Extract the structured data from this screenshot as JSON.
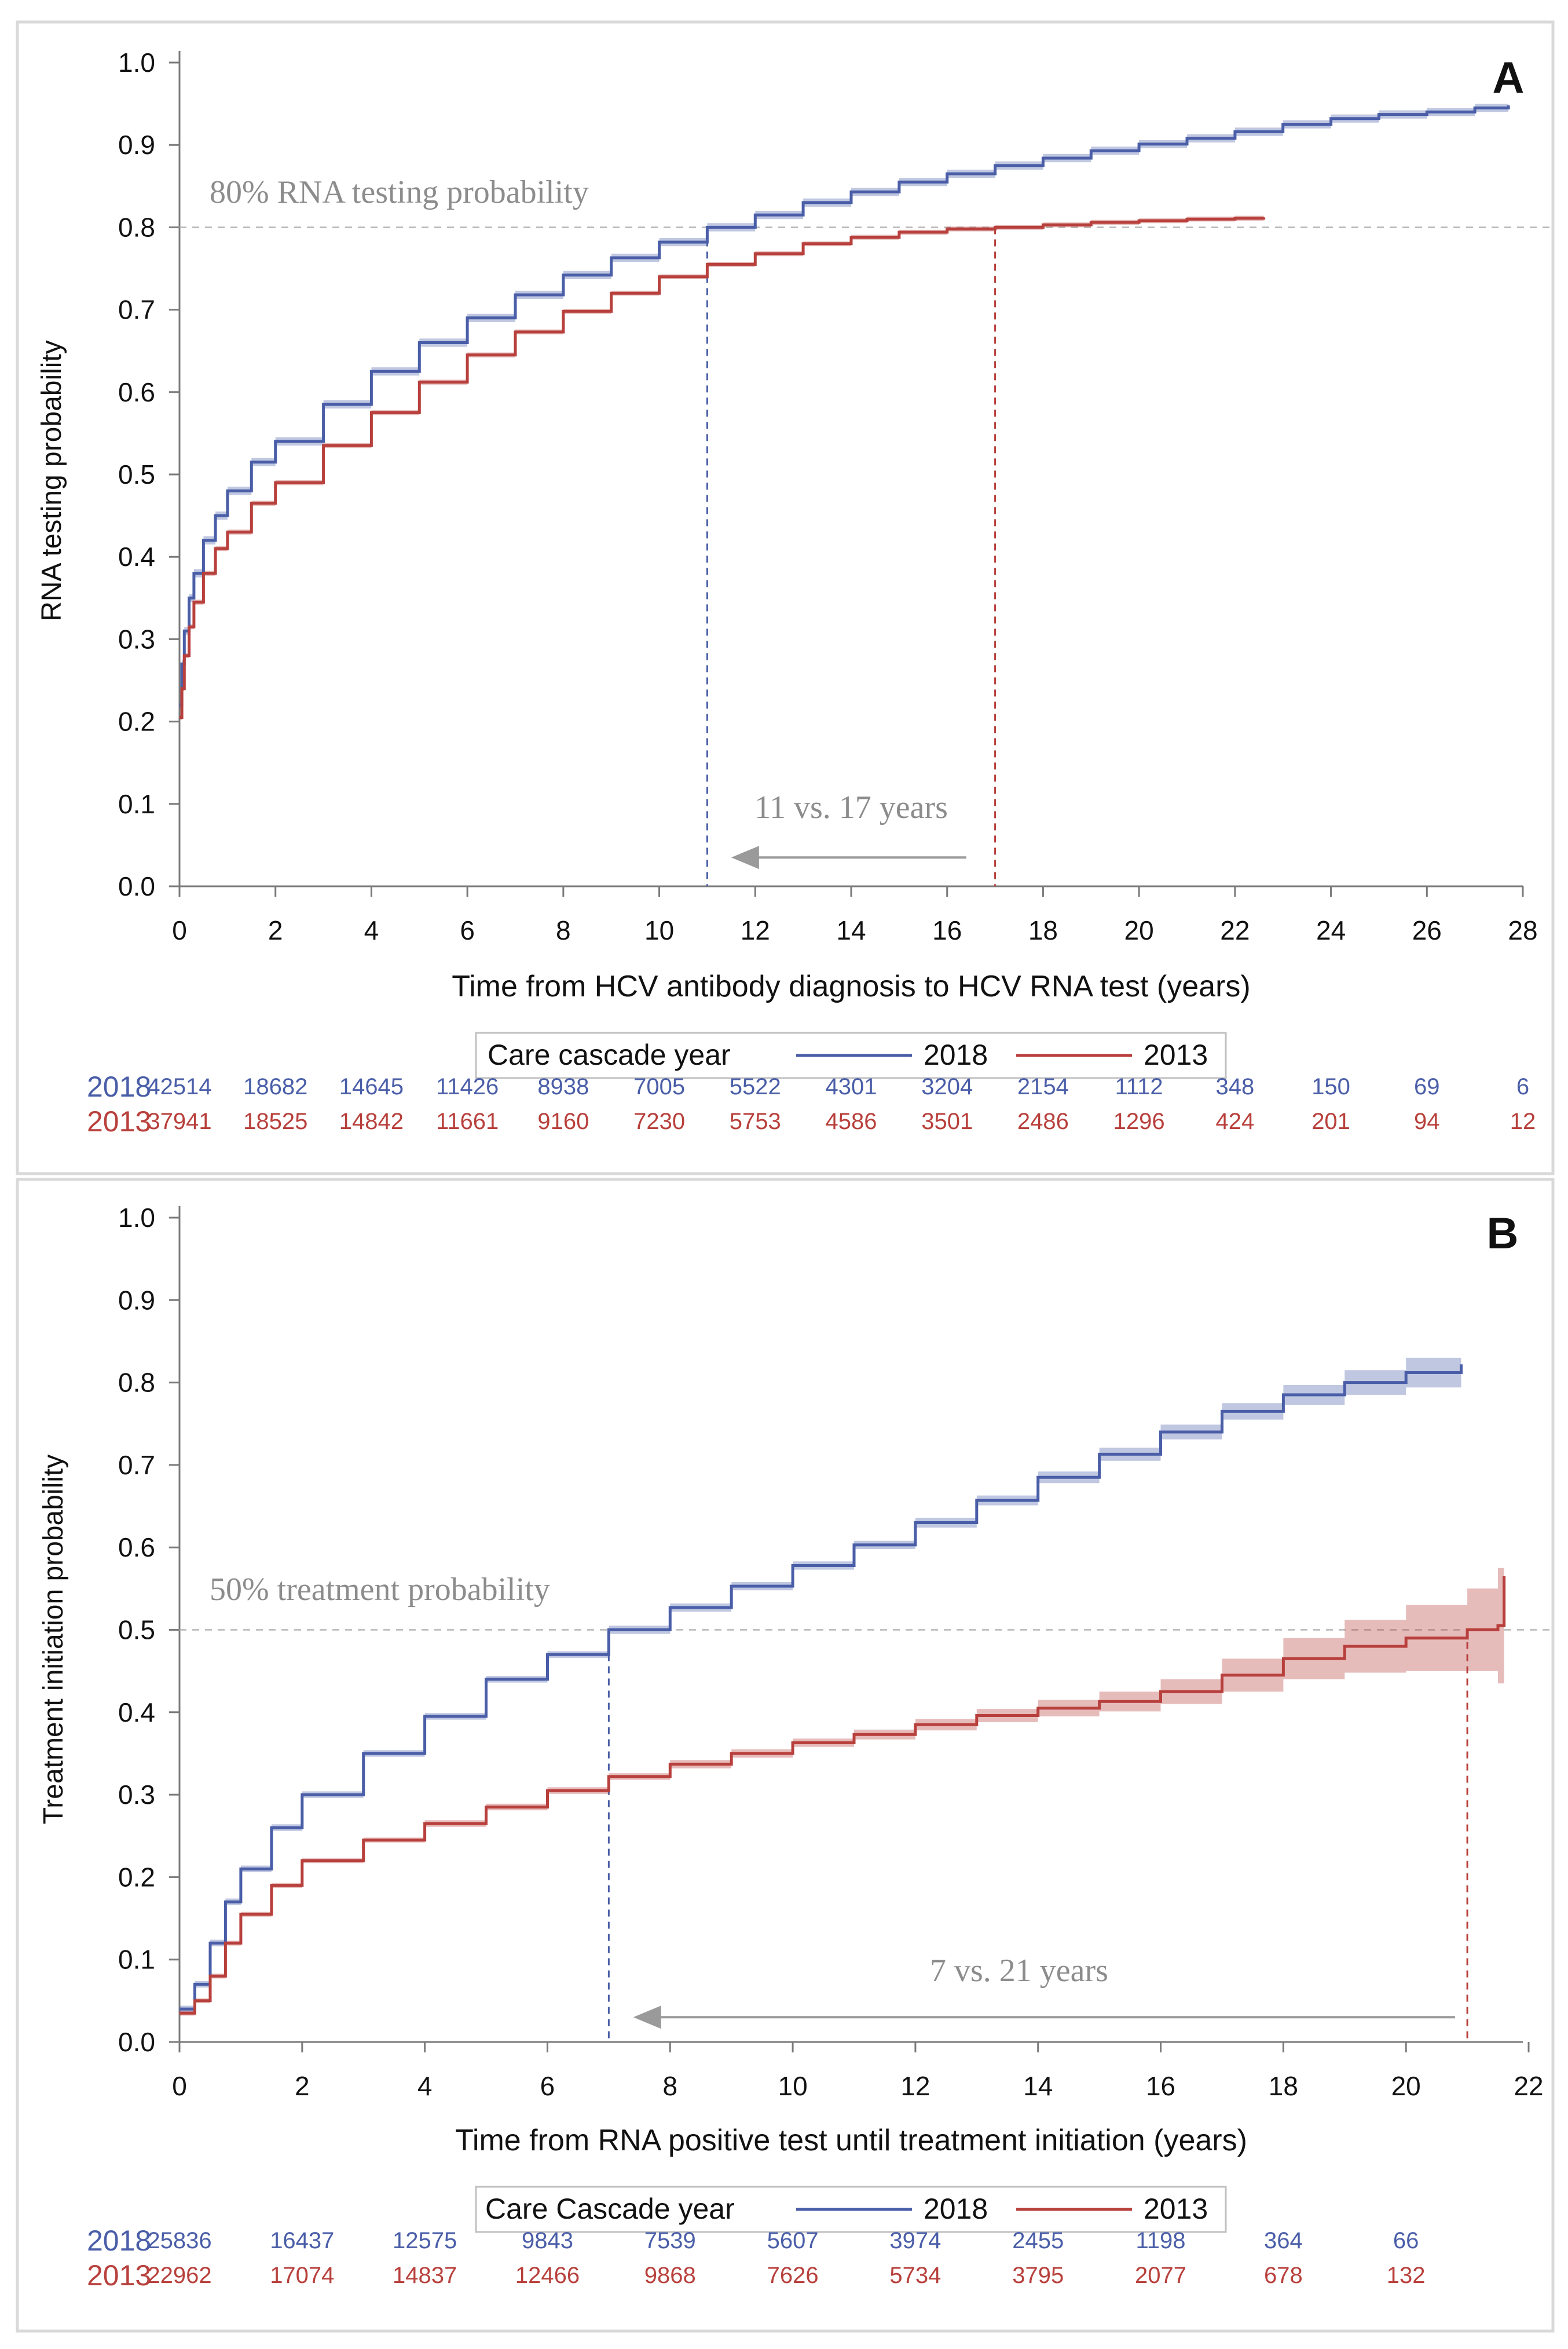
{
  "chart_data": [
    {
      "type": "line",
      "panel_label": "A",
      "xlabel": "Time from HCV antibody diagnosis to HCV RNA test (years)",
      "ylabel": "RNA testing probability",
      "xlim": [
        0,
        28
      ],
      "ylim": [
        0,
        1.0
      ],
      "xticks": [
        0,
        2,
        4,
        6,
        8,
        10,
        12,
        14,
        16,
        18,
        20,
        22,
        24,
        26,
        28
      ],
      "xtick_labels": [
        "0",
        "2",
        "4",
        "6",
        "8",
        "10",
        "12",
        "14",
        "16",
        "18",
        "20",
        "22",
        "24",
        "26",
        "28"
      ],
      "yticks": [
        0,
        0.1,
        0.2,
        0.3,
        0.4,
        0.5,
        0.6,
        0.7,
        0.8,
        0.9,
        1.0
      ],
      "ytick_labels": [
        "0.0",
        "0.1",
        "0.2",
        "0.3",
        "0.4",
        "0.5",
        "0.6",
        "0.7",
        "0.8",
        "0.9",
        "1.0"
      ],
      "threshold": {
        "y": 0.8,
        "label": "80% RNA testing probability"
      },
      "drop_lines": [
        {
          "series": "2018",
          "x": 11
        },
        {
          "series": "2013",
          "x": 17
        }
      ],
      "arrow": {
        "from_x": 16.4,
        "to_x": 11.5,
        "y": 0.035,
        "label": "11 vs. 17 years"
      },
      "legend": {
        "title": "Care cascade year",
        "placement": "below",
        "entries": [
          "2018",
          "2013"
        ]
      },
      "series": [
        {
          "name": "2018",
          "color": "#4a5ea8",
          "band": 0.005,
          "points": [
            [
              0,
              0.22
            ],
            [
              0.05,
              0.27
            ],
            [
              0.1,
              0.31
            ],
            [
              0.2,
              0.35
            ],
            [
              0.3,
              0.38
            ],
            [
              0.5,
              0.42
            ],
            [
              0.75,
              0.45
            ],
            [
              1,
              0.48
            ],
            [
              1.5,
              0.515
            ],
            [
              2,
              0.54
            ],
            [
              3,
              0.585
            ],
            [
              4,
              0.625
            ],
            [
              5,
              0.66
            ],
            [
              6,
              0.69
            ],
            [
              7,
              0.718
            ],
            [
              8,
              0.742
            ],
            [
              9,
              0.763
            ],
            [
              10,
              0.782
            ],
            [
              11,
              0.8
            ],
            [
              12,
              0.815
            ],
            [
              13,
              0.83
            ],
            [
              14,
              0.843
            ],
            [
              15,
              0.855
            ],
            [
              16,
              0.865
            ],
            [
              17,
              0.875
            ],
            [
              18,
              0.884
            ],
            [
              19,
              0.893
            ],
            [
              20,
              0.901
            ],
            [
              21,
              0.908
            ],
            [
              22,
              0.916
            ],
            [
              23,
              0.925
            ],
            [
              24,
              0.932
            ],
            [
              25,
              0.937
            ],
            [
              26,
              0.94
            ],
            [
              27,
              0.945
            ],
            [
              27.7,
              0.948
            ]
          ]
        },
        {
          "name": "2013",
          "color": "#b8403c",
          "band": 0.003,
          "points": [
            [
              0,
              0.205
            ],
            [
              0.05,
              0.24
            ],
            [
              0.1,
              0.28
            ],
            [
              0.2,
              0.315
            ],
            [
              0.3,
              0.345
            ],
            [
              0.5,
              0.38
            ],
            [
              0.75,
              0.41
            ],
            [
              1,
              0.43
            ],
            [
              1.5,
              0.465
            ],
            [
              2,
              0.49
            ],
            [
              3,
              0.535
            ],
            [
              4,
              0.575
            ],
            [
              5,
              0.612
            ],
            [
              6,
              0.645
            ],
            [
              7,
              0.673
            ],
            [
              8,
              0.698
            ],
            [
              9,
              0.72
            ],
            [
              10,
              0.74
            ],
            [
              11,
              0.755
            ],
            [
              12,
              0.768
            ],
            [
              13,
              0.78
            ],
            [
              14,
              0.788
            ],
            [
              15,
              0.794
            ],
            [
              16,
              0.798
            ],
            [
              17,
              0.8
            ],
            [
              18,
              0.803
            ],
            [
              19,
              0.806
            ],
            [
              20,
              0.808
            ],
            [
              21,
              0.81
            ],
            [
              22,
              0.811
            ],
            [
              22.6,
              0.812
            ]
          ]
        }
      ],
      "at_risk": {
        "x": [
          0,
          2,
          4,
          6,
          8,
          10,
          12,
          14,
          16,
          18,
          20,
          22,
          24,
          26,
          28
        ],
        "rows": [
          {
            "label": "2018",
            "color": "#4a5ea8",
            "values": [
              "42514",
              "18682",
              "14645",
              "11426",
              "8938",
              "7005",
              "5522",
              "4301",
              "3204",
              "2154",
              "1112",
              "348",
              "150",
              "69",
              "6"
            ]
          },
          {
            "label": "2013",
            "color": "#b8403c",
            "values": [
              "37941",
              "18525",
              "14842",
              "11661",
              "9160",
              "7230",
              "5753",
              "4586",
              "3501",
              "2486",
              "1296",
              "424",
              "201",
              "94",
              "12"
            ]
          }
        ]
      }
    },
    {
      "type": "line",
      "panel_label": "B",
      "xlabel": "Time from RNA positive test until treatment initiation (years)",
      "ylabel": "Treatment initiation probability",
      "xlim": [
        0,
        22
      ],
      "ylim": [
        0,
        1.0
      ],
      "xticks": [
        0,
        2,
        4,
        6,
        8,
        10,
        12,
        14,
        16,
        18,
        20,
        22
      ],
      "xtick_labels": [
        "0",
        "2",
        "4",
        "6",
        "8",
        "10",
        "12",
        "14",
        "16",
        "18",
        "20",
        "22"
      ],
      "yticks": [
        0,
        0.1,
        0.2,
        0.3,
        0.4,
        0.5,
        0.6,
        0.7,
        0.8,
        0.9,
        1.0
      ],
      "ytick_labels": [
        "0.0",
        "0.1",
        "0.2",
        "0.3",
        "0.4",
        "0.5",
        "0.6",
        "0.7",
        "0.8",
        "0.9",
        "1.0"
      ],
      "threshold": {
        "y": 0.5,
        "label": "50% treatment probability"
      },
      "drop_lines": [
        {
          "series": "2018",
          "x": 7
        },
        {
          "series": "2013",
          "x": 21
        }
      ],
      "arrow": {
        "from_x": 20.8,
        "to_x": 7.4,
        "y": 0.03,
        "label": "7 vs. 21 years"
      },
      "legend": {
        "title": "Care Cascade year",
        "placement": "below",
        "entries": [
          "2018",
          "2013"
        ]
      },
      "series": [
        {
          "name": "2018",
          "color": "#4a5ea8",
          "points": [
            [
              0,
              0.04
            ],
            [
              0.25,
              0.07
            ],
            [
              0.5,
              0.12
            ],
            [
              0.75,
              0.17
            ],
            [
              1,
              0.21
            ],
            [
              1.5,
              0.26
            ],
            [
              2,
              0.3
            ],
            [
              3,
              0.35
            ],
            [
              4,
              0.395
            ],
            [
              5,
              0.44
            ],
            [
              6,
              0.47
            ],
            [
              7,
              0.5
            ],
            [
              8,
              0.527
            ],
            [
              9,
              0.553
            ],
            [
              10,
              0.578
            ],
            [
              11,
              0.603
            ],
            [
              12,
              0.63
            ],
            [
              13,
              0.657
            ],
            [
              14,
              0.685
            ],
            [
              15,
              0.713
            ],
            [
              16,
              0.74
            ],
            [
              17,
              0.765
            ],
            [
              18,
              0.785
            ],
            [
              19,
              0.8
            ],
            [
              20,
              0.812
            ],
            [
              20.9,
              0.822
            ]
          ],
          "band": [
            0.004,
            0.004,
            0.004,
            0.004,
            0.004,
            0.004,
            0.004,
            0.004,
            0.004,
            0.004,
            0.004,
            0.005,
            0.005,
            0.005,
            0.005,
            0.005,
            0.006,
            0.006,
            0.007,
            0.008,
            0.009,
            0.01,
            0.012,
            0.015,
            0.018,
            0.03
          ]
        },
        {
          "name": "2013",
          "color": "#b8403c",
          "points": [
            [
              0,
              0.035
            ],
            [
              0.25,
              0.05
            ],
            [
              0.5,
              0.08
            ],
            [
              0.75,
              0.12
            ],
            [
              1,
              0.155
            ],
            [
              1.5,
              0.19
            ],
            [
              2,
              0.22
            ],
            [
              3,
              0.245
            ],
            [
              4,
              0.265
            ],
            [
              5,
              0.285
            ],
            [
              6,
              0.305
            ],
            [
              7,
              0.322
            ],
            [
              8,
              0.337
            ],
            [
              9,
              0.35
            ],
            [
              10,
              0.363
            ],
            [
              11,
              0.373
            ],
            [
              12,
              0.385
            ],
            [
              13,
              0.396
            ],
            [
              14,
              0.405
            ],
            [
              15,
              0.413
            ],
            [
              16,
              0.425
            ],
            [
              17,
              0.445
            ],
            [
              18,
              0.465
            ],
            [
              19,
              0.48
            ],
            [
              20,
              0.49
            ],
            [
              21,
              0.5
            ],
            [
              21.5,
              0.505
            ],
            [
              21.6,
              0.565
            ]
          ],
          "band": [
            0.003,
            0.003,
            0.003,
            0.003,
            0.003,
            0.003,
            0.003,
            0.003,
            0.004,
            0.004,
            0.004,
            0.004,
            0.005,
            0.005,
            0.005,
            0.006,
            0.007,
            0.008,
            0.01,
            0.012,
            0.015,
            0.02,
            0.025,
            0.032,
            0.04,
            0.05,
            0.07,
            0.085
          ]
        }
      ],
      "at_risk": {
        "x": [
          0,
          2,
          4,
          6,
          8,
          10,
          12,
          14,
          16,
          18,
          20
        ],
        "rows": [
          {
            "label": "2018",
            "color": "#4a5ea8",
            "values": [
              "25836",
              "16437",
              "12575",
              "9843",
              "7539",
              "5607",
              "3974",
              "2455",
              "1198",
              "364",
              "66"
            ]
          },
          {
            "label": "2013",
            "color": "#b8403c",
            "values": [
              "22962",
              "17074",
              "14837",
              "12466",
              "9868",
              "7626",
              "5734",
              "3795",
              "2077",
              "678",
              "132"
            ]
          }
        ]
      }
    }
  ]
}
